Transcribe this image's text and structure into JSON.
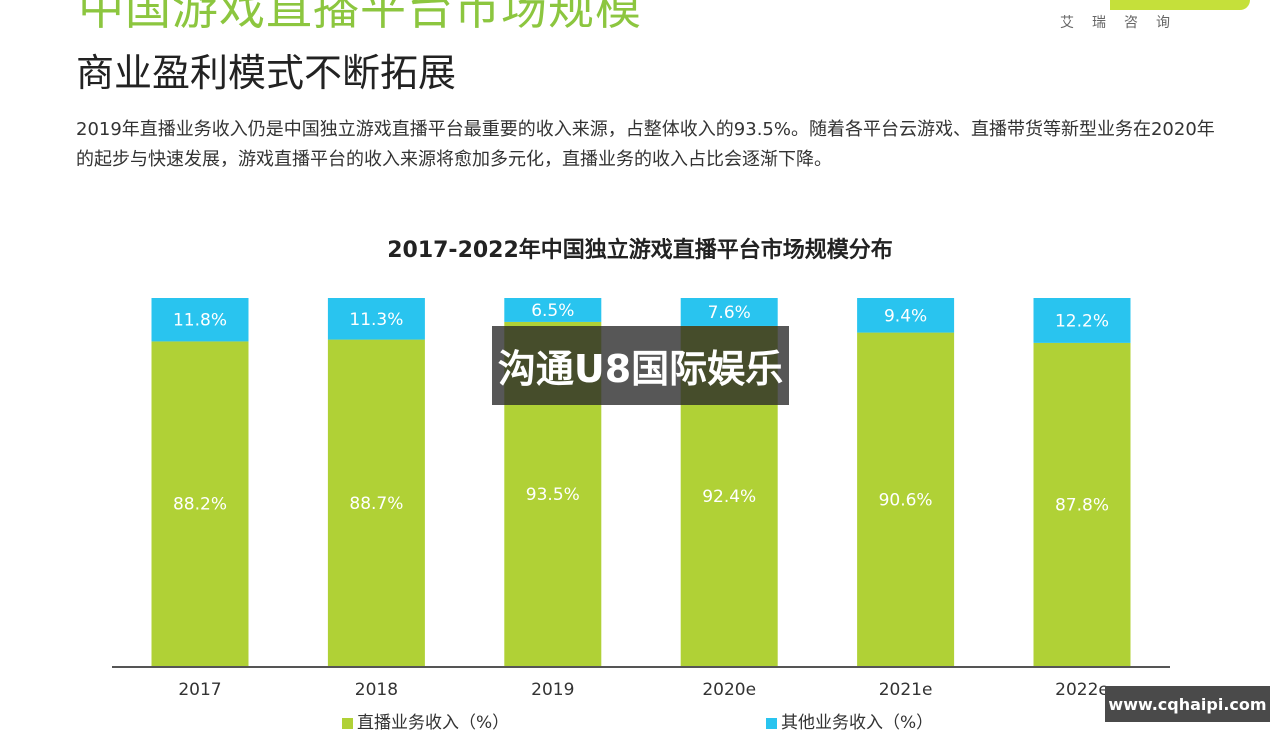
{
  "header": {
    "title": "中国游戏直播平台市场规模",
    "subtitle": "商业盈利模式不断拓展",
    "description": "2019年直播业务收入仍是中国独立游戏直播平台最重要的收入来源，占整体收入的93.5%。随着各平台云游戏、直播带货等新型业务在2020年的起步与快速发展，游戏直播平台的收入来源将愈加多元化，直播业务的收入占比会逐渐下降。",
    "logo_text": "艾瑞咨询"
  },
  "chart_data": {
    "type": "bar",
    "stacked": true,
    "title": "2017-2022年中国独立游戏直播平台市场规模分布",
    "categories": [
      "2017",
      "2018",
      "2019",
      "2020e",
      "2021e",
      "2022e"
    ],
    "series": [
      {
        "name": "直播业务收入（%）",
        "color": "#b0d136",
        "values": [
          88.2,
          88.7,
          93.5,
          92.4,
          90.6,
          87.8
        ],
        "labels": [
          "88.2%",
          "88.7%",
          "93.5%",
          "92.4%",
          "90.6%",
          "87.8%"
        ]
      },
      {
        "name": "其他业务收入（%）",
        "color": "#29c4ef",
        "values": [
          11.8,
          11.3,
          6.5,
          7.6,
          9.4,
          12.2
        ],
        "labels": [
          "11.8%",
          "11.3%",
          "6.5%",
          "7.6%",
          "9.4%",
          "12.2%"
        ]
      }
    ],
    "ylim": [
      0,
      100
    ],
    "grid": false,
    "legend_position": "bottom"
  },
  "watermark": "沟通U8国际娱乐",
  "site_badge": "www.cqhaipi.com"
}
